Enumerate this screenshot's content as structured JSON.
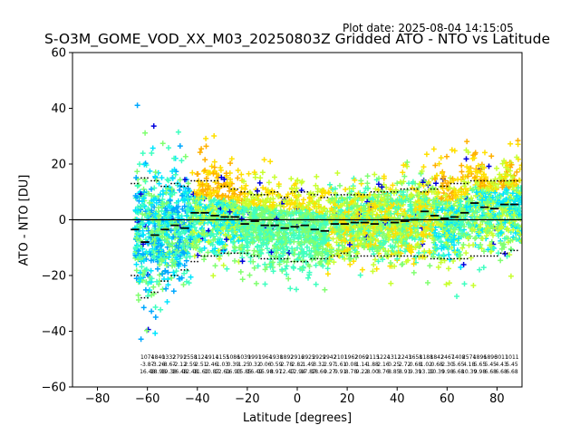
{
  "plot_date": "Plot date: 2025-08-04 14:15:05",
  "chart_data": {
    "type": "scatter",
    "title": "S-O3M_GOME_VOD_XX_M03_20250803Z Gridded ATO - NTO vs Latitude",
    "xlabel": "Latitude [degrees]",
    "ylabel": "ATO - NTO [DU]",
    "xlim": [
      -90,
      90
    ],
    "ylim": [
      -60,
      60
    ],
    "xticks": [
      -80,
      -60,
      -40,
      -20,
      0,
      20,
      40,
      60,
      80
    ],
    "yticks": [
      -60,
      -40,
      -20,
      0,
      20,
      40,
      60
    ],
    "xtick_labels": [
      "−80",
      "−60",
      "−40",
      "−20",
      "0",
      "20",
      "40",
      "60",
      "80"
    ],
    "ytick_labels": [
      "−60",
      "−40",
      "−20",
      "0",
      "20",
      "40",
      "60"
    ],
    "marker": "plus",
    "marker_colors": [
      "#0000dd",
      "#00a8ff",
      "#00e5ff",
      "#40ffc0",
      "#80ff70",
      "#c8ff30",
      "#ffe000",
      "#ffb000"
    ],
    "zero_line": 0,
    "grid": false,
    "legend": "none",
    "bin_statistics": {
      "lat_bins": [
        -65,
        -61,
        -57,
        -53,
        -49,
        -45,
        -41,
        -37,
        -33,
        -29,
        -25,
        -21,
        -17,
        -13,
        -9,
        -5,
        -1,
        3,
        7,
        11,
        15,
        19,
        23,
        27,
        31,
        35,
        39,
        43,
        47,
        51,
        55,
        59,
        63,
        67,
        71,
        75,
        79,
        83,
        87
      ],
      "mean": [
        -3.5,
        -8.0,
        -5.5,
        -3.5,
        -2.0,
        -3.0,
        2.5,
        2.5,
        1.5,
        1.0,
        1.0,
        -1.5,
        -0.5,
        -2.0,
        -2.0,
        -3.0,
        -2.5,
        -2.0,
        -3.5,
        -4.0,
        -1.5,
        -1.5,
        -1.0,
        -1.0,
        -1.5,
        0.0,
        -1.0,
        -0.5,
        0.0,
        3.0,
        1.5,
        0.5,
        1.0,
        2.5,
        6.0,
        4.5,
        4.0,
        5.5,
        5.5
      ],
      "upper": [
        13,
        15,
        14,
        12,
        13,
        12,
        14,
        14,
        14,
        12,
        11,
        10,
        9,
        9,
        10,
        8,
        10,
        10,
        9,
        8,
        9,
        9,
        9,
        9,
        10,
        10,
        10,
        11,
        11,
        10,
        11,
        12,
        13,
        13,
        14,
        14,
        14,
        14,
        14
      ],
      "lower": [
        -20,
        -28,
        -26,
        -22,
        -20,
        -18,
        -15,
        -13,
        -13,
        -12,
        -12,
        -12,
        -13,
        -14,
        -14,
        -14,
        -15,
        -15,
        -14,
        -14,
        -13,
        -12,
        -13,
        -13,
        -13,
        -13,
        -13,
        -13,
        -13,
        -13,
        -14,
        -14,
        -14,
        -14,
        -13,
        -13,
        -13,
        -12,
        -11
      ]
    },
    "annotations": {
      "count": [
        "1074",
        "1840",
        "1332",
        "2791",
        "2558",
        "1124",
        "1914",
        "1155",
        "1086",
        "1039",
        "1991",
        "1964",
        "1938",
        "1892",
        "2916",
        "2925",
        "2929",
        "2942",
        "2101",
        "1962",
        "2069",
        "2115",
        "1224",
        "1312",
        "1243",
        "1658",
        "1188",
        "1842",
        "2467",
        "1408",
        "2574",
        "1896",
        "1896",
        "3011",
        "1011"
      ],
      "mean": [
        "-3.87",
        "-3.26",
        "-8.67",
        "-2.12",
        "2.59",
        "2.51",
        "2.46",
        "1.03",
        "0.39",
        "1.25",
        "0.32",
        "0.06",
        "0.59",
        "2.78",
        "2.82",
        "1.49",
        "3.32",
        "2.97",
        "1.61",
        "0.08",
        "1.14",
        "1.88",
        "2.16",
        "0.25",
        "2.72",
        "0.68",
        "1.02",
        "0.68",
        "2.30",
        "5.65",
        "4.18",
        "5.65",
        "5.45",
        "4.43",
        "5.45"
      ],
      "std": [
        "16.48",
        "18.98",
        "19.38",
        "16.48",
        "12.48",
        "11.60",
        "10.87",
        "12.61",
        "16.93",
        "15.85",
        "16.49",
        "15.98",
        "8.97",
        "12.47",
        "12.94",
        "17.87",
        "18.60",
        "9.27",
        "9.91",
        "8.78",
        "9.22",
        "8.00",
        "8.76",
        "8.85",
        "8.91",
        "9.39",
        "13.19",
        "10.39",
        "9.98",
        "6.68",
        "10.39",
        "9.98",
        "6.68",
        "6.68",
        "6.68"
      ]
    }
  }
}
